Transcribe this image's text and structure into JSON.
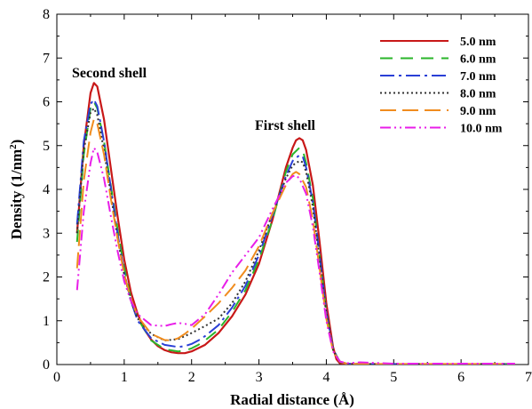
{
  "chart_data": {
    "type": "line",
    "xlabel": "Radial distance (Å)",
    "ylabel_main": "Density (1/nm",
    "ylabel_sup": "2",
    "ylabel_close": ")",
    "xlim": [
      0,
      7
    ],
    "ylim": [
      0,
      8
    ],
    "xticks": [
      "0",
      "1",
      "2",
      "3",
      "4",
      "5",
      "6",
      "7"
    ],
    "yticks": [
      "0",
      "1",
      "2",
      "3",
      "4",
      "5",
      "6",
      "7",
      "8"
    ],
    "legend_position": "top-right",
    "annotations": [
      {
        "text": "Second shell",
        "x": 0.55,
        "y": 6.7
      },
      {
        "text": "First shell",
        "x": 3.3,
        "y": 5.4
      }
    ],
    "series": [
      {
        "name": "5.0 nm",
        "color": "#c81818",
        "dash": "solid",
        "x": [
          0.3,
          0.4,
          0.5,
          0.55,
          0.6,
          0.7,
          0.8,
          0.9,
          1.0,
          1.1,
          1.2,
          1.3,
          1.4,
          1.5,
          1.6,
          1.7,
          1.8,
          1.9,
          2.0,
          2.2,
          2.4,
          2.6,
          2.8,
          3.0,
          3.2,
          3.3,
          3.4,
          3.5,
          3.55,
          3.6,
          3.65,
          3.7,
          3.8,
          3.9,
          4.0,
          4.1,
          4.15,
          4.2,
          4.3,
          4.5,
          5.0,
          5.5,
          6.0,
          6.5,
          6.8
        ],
        "y": [
          3.0,
          5.0,
          6.2,
          6.43,
          6.35,
          5.6,
          4.5,
          3.4,
          2.4,
          1.65,
          1.15,
          0.8,
          0.57,
          0.42,
          0.33,
          0.28,
          0.26,
          0.26,
          0.3,
          0.45,
          0.72,
          1.1,
          1.6,
          2.3,
          3.3,
          3.9,
          4.5,
          4.95,
          5.12,
          5.17,
          5.12,
          4.9,
          4.1,
          2.8,
          1.4,
          0.4,
          0.12,
          0.03,
          0.01,
          0.01,
          0.01,
          0.01,
          0.01,
          0.01,
          0.01
        ]
      },
      {
        "name": "6.0 nm",
        "color": "#2ab52a",
        "dash": "14,9",
        "x": [
          0.3,
          0.4,
          0.5,
          0.55,
          0.6,
          0.7,
          0.8,
          0.9,
          1.0,
          1.1,
          1.2,
          1.4,
          1.6,
          1.8,
          1.9,
          2.0,
          2.1,
          2.2,
          2.4,
          2.6,
          2.8,
          3.0,
          3.2,
          3.4,
          3.5,
          3.6,
          3.65,
          3.7,
          3.8,
          3.9,
          4.0,
          4.1,
          4.2,
          4.3,
          4.5,
          5.0,
          5.5,
          6.0,
          6.5,
          6.8
        ],
        "y": [
          2.8,
          4.8,
          5.85,
          6.0,
          5.85,
          5.1,
          4.1,
          3.1,
          2.2,
          1.5,
          1.05,
          0.55,
          0.35,
          0.3,
          0.32,
          0.37,
          0.45,
          0.55,
          0.8,
          1.2,
          1.7,
          2.4,
          3.3,
          4.4,
          4.8,
          4.95,
          4.9,
          4.6,
          3.8,
          2.5,
          1.2,
          0.35,
          0.06,
          0.02,
          0.01,
          0.01,
          0.01,
          0.01,
          0.01,
          0.01
        ]
      },
      {
        "name": "7.0 nm",
        "color": "#2a3fd6",
        "dash": "16,5,3,5",
        "x": [
          0.3,
          0.4,
          0.5,
          0.55,
          0.6,
          0.7,
          0.8,
          0.9,
          1.0,
          1.1,
          1.2,
          1.4,
          1.6,
          1.8,
          1.9,
          2.0,
          2.1,
          2.2,
          2.4,
          2.6,
          2.8,
          3.0,
          3.2,
          3.4,
          3.5,
          3.6,
          3.65,
          3.7,
          3.8,
          3.9,
          4.0,
          4.1,
          4.2,
          4.3,
          4.5,
          5.0,
          5.5,
          6.0,
          6.5,
          6.8
        ],
        "y": [
          3.2,
          5.1,
          5.95,
          6.05,
          5.9,
          5.1,
          4.05,
          3.0,
          2.1,
          1.45,
          1.0,
          0.6,
          0.45,
          0.4,
          0.42,
          0.47,
          0.55,
          0.65,
          0.9,
          1.3,
          1.8,
          2.5,
          3.4,
          4.3,
          4.65,
          4.78,
          4.75,
          4.5,
          3.7,
          2.5,
          1.2,
          0.35,
          0.07,
          0.02,
          0.01,
          0.01,
          0.01,
          0.01,
          0.01,
          0.01
        ]
      },
      {
        "name": "8.0 nm",
        "color": "#333333",
        "dash": "2,3",
        "x": [
          0.3,
          0.4,
          0.5,
          0.55,
          0.6,
          0.7,
          0.8,
          0.9,
          1.0,
          1.1,
          1.2,
          1.4,
          1.6,
          1.8,
          1.9,
          2.0,
          2.1,
          2.2,
          2.4,
          2.6,
          2.8,
          3.0,
          3.2,
          3.4,
          3.5,
          3.6,
          3.65,
          3.7,
          3.8,
          3.9,
          4.0,
          4.1,
          4.2,
          4.3,
          4.5,
          5.0,
          5.5,
          6.0,
          6.5,
          6.8
        ],
        "y": [
          3.0,
          4.9,
          5.75,
          5.85,
          5.7,
          4.9,
          3.9,
          2.9,
          2.05,
          1.45,
          1.05,
          0.7,
          0.55,
          0.58,
          0.65,
          0.72,
          0.8,
          0.88,
          1.05,
          1.4,
          1.9,
          2.6,
          3.45,
          4.25,
          4.55,
          4.65,
          4.62,
          4.4,
          3.6,
          2.4,
          1.15,
          0.33,
          0.07,
          0.02,
          0.01,
          0.01,
          0.01,
          0.01,
          0.01,
          0.01
        ]
      },
      {
        "name": "9.0 nm",
        "color": "#f08c1e",
        "dash": "18,7",
        "x": [
          0.3,
          0.4,
          0.5,
          0.55,
          0.6,
          0.7,
          0.8,
          0.9,
          1.0,
          1.1,
          1.2,
          1.4,
          1.6,
          1.7,
          1.8,
          1.9,
          2.0,
          2.2,
          2.4,
          2.6,
          2.8,
          3.0,
          3.2,
          3.4,
          3.5,
          3.55,
          3.6,
          3.7,
          3.8,
          3.9,
          4.0,
          4.1,
          4.2,
          4.3,
          4.5,
          5.0,
          5.5,
          6.0,
          6.5,
          6.8
        ],
        "y": [
          2.2,
          4.2,
          5.3,
          5.6,
          5.5,
          4.8,
          3.8,
          2.9,
          2.05,
          1.5,
          1.1,
          0.7,
          0.56,
          0.55,
          0.6,
          0.7,
          0.82,
          1.1,
          1.4,
          1.75,
          2.15,
          2.7,
          3.45,
          4.1,
          4.35,
          4.4,
          4.35,
          4.05,
          3.3,
          2.2,
          1.05,
          0.3,
          0.07,
          0.02,
          0.01,
          0.01,
          0.01,
          0.01,
          0.01,
          0.01
        ]
      },
      {
        "name": "10.0 nm",
        "color": "#e81ee8",
        "dash": "12,4,2,4,2,4",
        "x": [
          0.3,
          0.4,
          0.5,
          0.55,
          0.6,
          0.7,
          0.8,
          0.9,
          1.0,
          1.1,
          1.2,
          1.4,
          1.6,
          1.7,
          1.8,
          1.9,
          2.0,
          2.2,
          2.4,
          2.6,
          2.8,
          3.0,
          3.2,
          3.4,
          3.5,
          3.55,
          3.6,
          3.7,
          3.8,
          3.9,
          4.0,
          4.1,
          4.2,
          4.3,
          4.5,
          5.0,
          5.5,
          6.0,
          6.5,
          6.8
        ],
        "y": [
          1.7,
          3.5,
          4.6,
          4.95,
          4.85,
          4.25,
          3.4,
          2.6,
          1.9,
          1.45,
          1.15,
          0.9,
          0.88,
          0.92,
          0.95,
          0.93,
          0.9,
          1.15,
          1.6,
          2.1,
          2.5,
          2.9,
          3.55,
          4.15,
          4.3,
          4.32,
          4.25,
          3.9,
          3.15,
          2.1,
          1.0,
          0.3,
          0.07,
          0.03,
          0.05,
          0.02,
          0.02,
          0.02,
          0.02,
          0.02
        ]
      }
    ]
  }
}
